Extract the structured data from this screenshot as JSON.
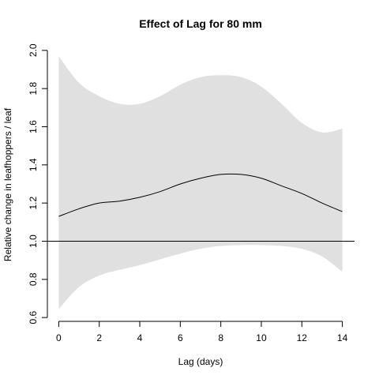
{
  "chart_data": {
    "type": "line",
    "title": "Effect of Lag for 80 mm",
    "xlabel": "Lag (days)",
    "ylabel": "Relative change in leafhoppers / leaf",
    "xlim": [
      -0.6,
      14.6
    ],
    "ylim": [
      0.58,
      2.02
    ],
    "x_ticks": [
      0,
      2,
      4,
      6,
      8,
      10,
      12,
      14
    ],
    "x_tick_labels": [
      "0",
      "2",
      "4",
      "6",
      "8",
      "10",
      "12",
      "14"
    ],
    "y_ticks": [
      0.6,
      0.8,
      1.0,
      1.2,
      1.4,
      1.6,
      1.8,
      2.0
    ],
    "y_tick_labels": [
      "0.6",
      "0.8",
      "1.0",
      "1.2",
      "1.4",
      "1.6",
      "1.8",
      "2.0"
    ],
    "grid": false,
    "reference_line": {
      "y": 1.0
    },
    "x": [
      0,
      1,
      2,
      3,
      4,
      5,
      6,
      7,
      8,
      9,
      10,
      11,
      12,
      13,
      14
    ],
    "series": [
      {
        "values": [
          1.13,
          1.17,
          1.2,
          1.21,
          1.23,
          1.26,
          1.3,
          1.33,
          1.35,
          1.35,
          1.33,
          1.29,
          1.25,
          1.2,
          1.155
        ]
      }
    ],
    "confidence_band": {
      "upper": [
        1.97,
        1.83,
        1.76,
        1.72,
        1.72,
        1.76,
        1.82,
        1.86,
        1.87,
        1.86,
        1.81,
        1.72,
        1.62,
        1.57,
        1.59
      ],
      "lower": [
        0.645,
        0.76,
        0.82,
        0.85,
        0.875,
        0.905,
        0.935,
        0.96,
        0.975,
        0.98,
        0.98,
        0.975,
        0.96,
        0.92,
        0.84
      ]
    },
    "colors": {
      "band": "#e0e0e0",
      "line": "#000000",
      "axis": "#000000"
    }
  }
}
